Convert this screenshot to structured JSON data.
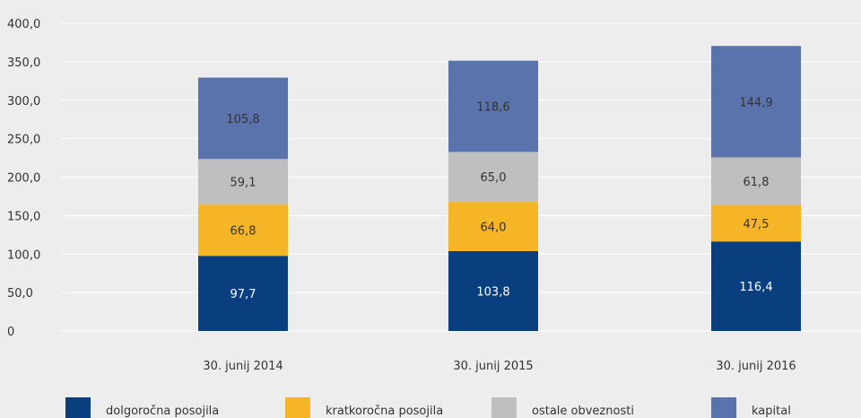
{
  "chart_data": {
    "type": "bar",
    "stacked": true,
    "categories": [
      "30. junij 2014",
      "30. junij 2015",
      "30. junij 2016"
    ],
    "series": [
      {
        "name": "dolgoročna posojila",
        "values": [
          97.7,
          103.8,
          116.4
        ],
        "labels": [
          "97,7",
          "103,8",
          "116,4"
        ],
        "color": "#0a3f7f",
        "label_color": "#ffffff"
      },
      {
        "name": "kratkoročna posojila",
        "values": [
          66.8,
          64.0,
          47.5
        ],
        "labels": [
          "66,8",
          "64,0",
          "47,5"
        ],
        "color": "#f6b427",
        "label_color": "#333333"
      },
      {
        "name": "ostale obveznosti",
        "values": [
          59.1,
          65.0,
          61.8
        ],
        "labels": [
          "59,1",
          "65,0",
          "61,8"
        ],
        "color": "#bfbfbf",
        "label_color": "#333333"
      },
      {
        "name": "kapital",
        "values": [
          105.8,
          118.6,
          144.9
        ],
        "labels": [
          "105,8",
          "118,6",
          "144,9"
        ],
        "color": "#5b73ad",
        "label_color": "#333333"
      }
    ],
    "yticks": [
      0,
      50,
      100,
      150,
      200,
      250,
      300,
      350,
      400
    ],
    "ytick_labels": [
      "0",
      "50,0",
      "100,0",
      "150,0",
      "200,0",
      "250,0",
      "300,0",
      "350,0",
      "400,0"
    ],
    "ylim": [
      0,
      400
    ],
    "grid": true,
    "legend_position": "bottom",
    "title": "",
    "xlabel": "",
    "ylabel": ""
  }
}
